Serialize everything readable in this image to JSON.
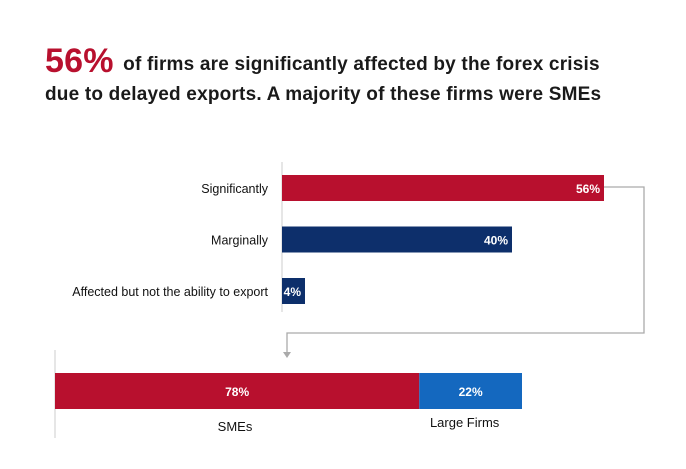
{
  "title": {
    "highlight": "56%",
    "line1": "of firms are significantly affected by the forex crisis",
    "line2": "due to delayed exports. A majority of these firms were SMEs"
  },
  "colors": {
    "red": "#b8102e",
    "navy": "#0d2f6b",
    "blue": "#1468bf",
    "axis": "#cccccc",
    "connector": "#aaaaaa"
  },
  "chart_data": [
    {
      "type": "bar",
      "orientation": "horizontal",
      "categories": [
        "Significantly",
        "Marginally",
        "Affected but not the ability to export"
      ],
      "values": [
        56,
        40,
        4
      ],
      "labels": [
        "56%",
        "40%",
        "4%"
      ],
      "colors": [
        "#b8102e",
        "#0d2f6b",
        "#0d2f6b"
      ],
      "xlim": [
        0,
        56
      ],
      "unit": "%"
    },
    {
      "type": "bar",
      "orientation": "horizontal-stacked",
      "categories": [
        "SMEs",
        "Large Firms"
      ],
      "values": [
        78,
        22
      ],
      "labels": [
        "78%",
        "22%"
      ],
      "colors": [
        "#b8102e",
        "#1468bf"
      ],
      "xlim": [
        0,
        100
      ],
      "unit": "%"
    }
  ]
}
